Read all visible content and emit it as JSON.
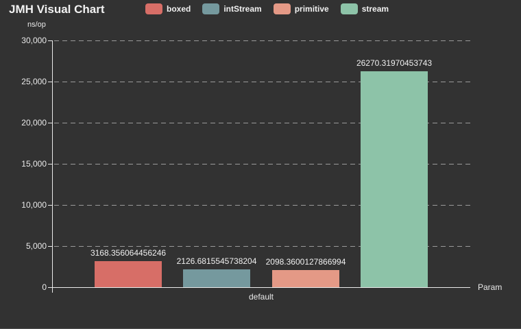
{
  "page": {
    "title": "JMH Visual Chart",
    "y_axis_unit": "ns/op",
    "x_axis_label": "Param",
    "background_color": "#323232",
    "text_color": "#f2f2f2"
  },
  "chart_data": {
    "type": "bar",
    "title": "JMH Visual Chart",
    "ylabel": "ns/op",
    "xlabel": "Param",
    "categories": [
      "default"
    ],
    "series": [
      {
        "name": "boxed",
        "color": "#d76e67",
        "values": [
          3168.356064456246
        ],
        "value_label": "3168.356064456246"
      },
      {
        "name": "intStream",
        "color": "#75999e",
        "values": [
          2126.6815545738204
        ],
        "value_label": "2126.6815545738204"
      },
      {
        "name": "primitive",
        "color": "#e49986",
        "values": [
          2098.3600127866994
        ],
        "value_label": "2098.3600127866994"
      },
      {
        "name": "stream",
        "color": "#8dc3a8",
        "values": [
          26270.31970453743
        ],
        "value_label": "26270.31970453743"
      }
    ],
    "ylim": [
      0,
      30000
    ],
    "y_tick_step": 5000,
    "y_tick_labels": [
      "0",
      "5,000",
      "10,000",
      "15,000",
      "20,000",
      "25,000",
      "30,000"
    ],
    "grid": "horizontal-dashed",
    "legend_position": "top",
    "gridline_color": "#9b9b9b",
    "axis_color": "#ececec"
  }
}
